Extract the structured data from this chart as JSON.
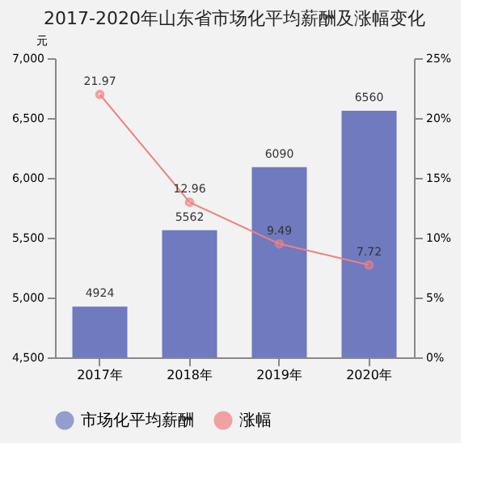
{
  "chart_data": {
    "type": "bar",
    "title": "2017-2020年山东省市场化平均薪酬及涨幅变化",
    "categories": [
      "2017年",
      "2018年",
      "2019年",
      "2020年"
    ],
    "ylabel": "元",
    "series": [
      {
        "name": "市场化平均薪酬",
        "color": "#6f7abf",
        "values": [
          4924,
          5562,
          6090,
          6560
        ]
      },
      {
        "name": "涨幅",
        "type": "line",
        "axis": "y2",
        "color": "#f08080",
        "values": [
          21.97,
          12.96,
          9.49,
          7.72
        ]
      }
    ],
    "ylim": [
      4500,
      7000
    ],
    "yticks": [
      {
        "value": 4500,
        "label": "4,500"
      },
      {
        "value": 5000,
        "label": "5,000"
      },
      {
        "value": 5500,
        "label": "5,500"
      },
      {
        "value": 6000,
        "label": "6,000"
      },
      {
        "value": 6500,
        "label": "6,500"
      },
      {
        "value": 7000,
        "label": "7,000"
      }
    ],
    "y2lim": [
      0,
      25
    ],
    "y2ticks": [
      {
        "value": 0,
        "label": "0%"
      },
      {
        "value": 5,
        "label": "5%"
      },
      {
        "value": 10,
        "label": "10%"
      },
      {
        "value": 15,
        "label": "15%"
      },
      {
        "value": 20,
        "label": "20%"
      },
      {
        "value": 25,
        "label": "25%"
      }
    ],
    "data_labels": true,
    "legend": "bottom",
    "grid": false,
    "marker": "circle"
  }
}
